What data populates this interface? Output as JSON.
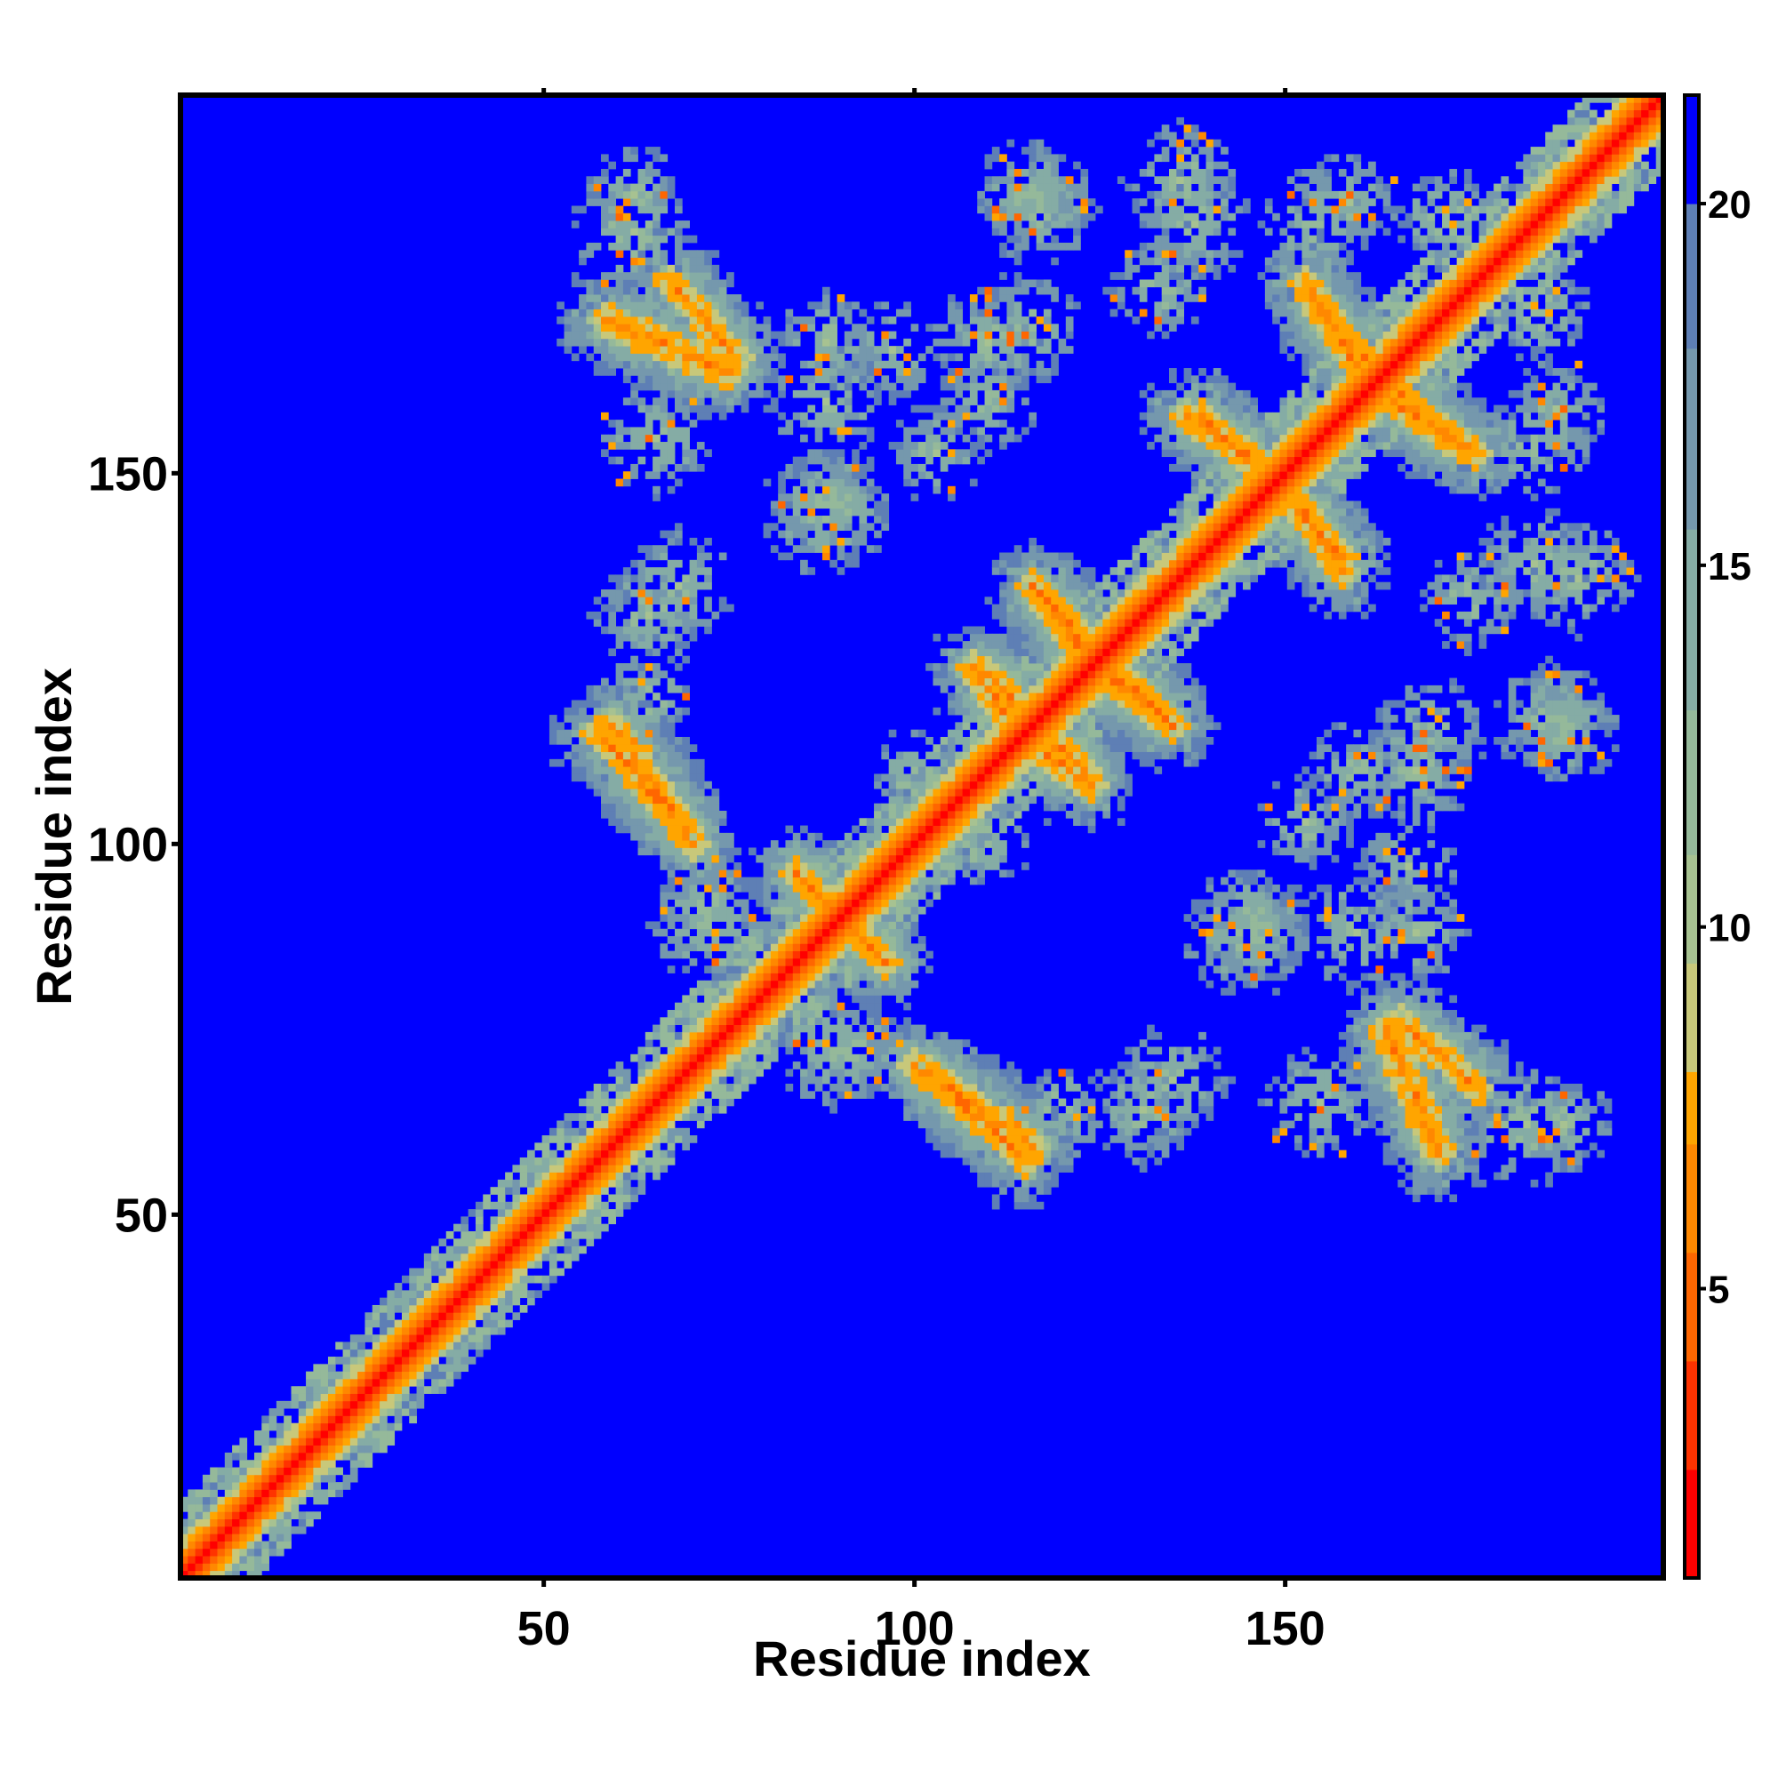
{
  "chart_data": {
    "type": "heatmap",
    "title": "",
    "xlabel": "Residue index",
    "ylabel": "Residue index",
    "xlim": [
      1,
      201
    ],
    "ylim": [
      1,
      201
    ],
    "x_ticks": [
      50,
      100,
      150
    ],
    "y_ticks": [
      50,
      100,
      150
    ],
    "colorbar": {
      "range": [
        1,
        21.5
      ],
      "ticks": [
        5,
        10,
        15,
        20
      ],
      "colors": [
        {
          "from": 1,
          "to": 2.5,
          "color": "#ff0000"
        },
        {
          "from": 2.5,
          "to": 4,
          "color": "#ff3300"
        },
        {
          "from": 4,
          "to": 5.5,
          "color": "#ff6600"
        },
        {
          "from": 5.5,
          "to": 7,
          "color": "#ff8800"
        },
        {
          "from": 7,
          "to": 8,
          "color": "#ffa500"
        },
        {
          "from": 8,
          "to": 9.5,
          "color": "#c8c87a"
        },
        {
          "from": 9.5,
          "to": 11,
          "color": "#a7c291"
        },
        {
          "from": 11,
          "to": 13,
          "color": "#95b99a"
        },
        {
          "from": 13,
          "to": 15.5,
          "color": "#85aca5"
        },
        {
          "from": 15.5,
          "to": 18,
          "color": "#7598ad"
        },
        {
          "from": 18,
          "to": 20,
          "color": "#5e7fb5"
        },
        {
          "from": 20,
          "to": 21.5,
          "color": "#0000ff"
        }
      ]
    },
    "background_value": 21.5,
    "background_color": "#0000ff",
    "grid": false,
    "features": [
      {
        "kind": "diagonal",
        "from": 1,
        "to": 201,
        "half_width": 5
      },
      {
        "kind": "antiparallel",
        "x": [
          58,
          75
        ],
        "y": [
          171,
          164
        ],
        "width": 3
      },
      {
        "kind": "antiparallel",
        "x": [
          137,
          146
        ],
        "y": [
          158,
          152
        ],
        "width": 3
      },
      {
        "kind": "antiparallel",
        "x": [
          151,
          158
        ],
        "y": [
          146,
          139
        ],
        "width": 3
      },
      {
        "kind": "antiparallel",
        "x": [
          155,
          167
        ],
        "y": [
          172,
          160
        ],
        "width": 3
      },
      {
        "kind": "antiparallel",
        "x": [
          165,
          176
        ],
        "y": [
          160,
          153
        ],
        "width": 3
      },
      {
        "kind": "antiparallel",
        "x": [
          116,
          122
        ],
        "y": [
          135,
          127
        ],
        "width": 3
      },
      {
        "kind": "antiparallel",
        "x": [
          126,
          134
        ],
        "y": [
          124,
          117
        ],
        "width": 3
      },
      {
        "kind": "antiparallel",
        "x": [
          110,
          116
        ],
        "y": [
          123,
          116
        ],
        "width": 3
      },
      {
        "kind": "antiparallel",
        "x": [
          118,
          124
        ],
        "y": [
          112,
          108
        ],
        "width": 3
      },
      {
        "kind": "antiparallel",
        "x": [
          57,
          68
        ],
        "y": [
          115,
          103
        ],
        "width": 3
      },
      {
        "kind": "antiparallel",
        "x": [
          100,
          116
        ],
        "y": [
          70,
          59
        ],
        "width": 3
      },
      {
        "kind": "antiparallel",
        "x": [
          166,
          176
        ],
        "y": [
          76,
          67
        ],
        "width": 3
      },
      {
        "kind": "antiparallel",
        "x": [
          84,
          96
        ],
        "y": [
          96,
          84
        ],
        "width": 3
      },
      {
        "kind": "blob",
        "x": 62,
        "y": 183,
        "r": 9
      },
      {
        "kind": "blob",
        "x": 65,
        "y": 155,
        "r": 8
      },
      {
        "kind": "blob",
        "x": 64,
        "y": 131,
        "r": 8
      },
      {
        "kind": "blob",
        "x": 88,
        "y": 168,
        "r": 7
      },
      {
        "kind": "blob",
        "x": 110,
        "y": 168,
        "r": 8
      },
      {
        "kind": "blob",
        "x": 117,
        "y": 186,
        "r": 8
      },
      {
        "kind": "blob",
        "x": 89,
        "y": 146,
        "r": 8
      },
      {
        "kind": "blob",
        "x": 103,
        "y": 153,
        "r": 7
      },
      {
        "kind": "blob",
        "x": 138,
        "y": 184,
        "r": 8
      },
      {
        "kind": "blob",
        "x": 155,
        "y": 184,
        "r": 8
      },
      {
        "kind": "blob",
        "x": 172,
        "y": 185,
        "r": 7
      },
      {
        "kind": "blob",
        "x": 187,
        "y": 159,
        "r": 7
      },
      {
        "kind": "blob",
        "x": 190,
        "y": 136,
        "r": 8
      },
      {
        "kind": "blob",
        "x": 175,
        "y": 133,
        "r": 7
      },
      {
        "kind": "blob",
        "x": 188,
        "y": 116,
        "r": 8
      },
      {
        "kind": "blob",
        "x": 170,
        "y": 115,
        "r": 8
      },
      {
        "kind": "blob",
        "x": 160,
        "y": 110,
        "r": 7
      },
      {
        "kind": "blob",
        "x": 145,
        "y": 88,
        "r": 9
      },
      {
        "kind": "blob",
        "x": 160,
        "y": 88,
        "r": 8
      },
      {
        "kind": "blob",
        "x": 135,
        "y": 68,
        "r": 8
      },
      {
        "kind": "blob",
        "x": 120,
        "y": 64,
        "r": 7
      },
      {
        "kind": "blob",
        "x": 188,
        "y": 62,
        "r": 7
      },
      {
        "kind": "blob",
        "x": 92,
        "y": 72,
        "r": 7
      },
      {
        "kind": "blob",
        "x": 72,
        "y": 89,
        "r": 8
      },
      {
        "kind": "blob",
        "x": 100,
        "y": 110,
        "r": 6
      },
      {
        "kind": "blob",
        "x": 167,
        "y": 97,
        "r": 7
      }
    ]
  }
}
